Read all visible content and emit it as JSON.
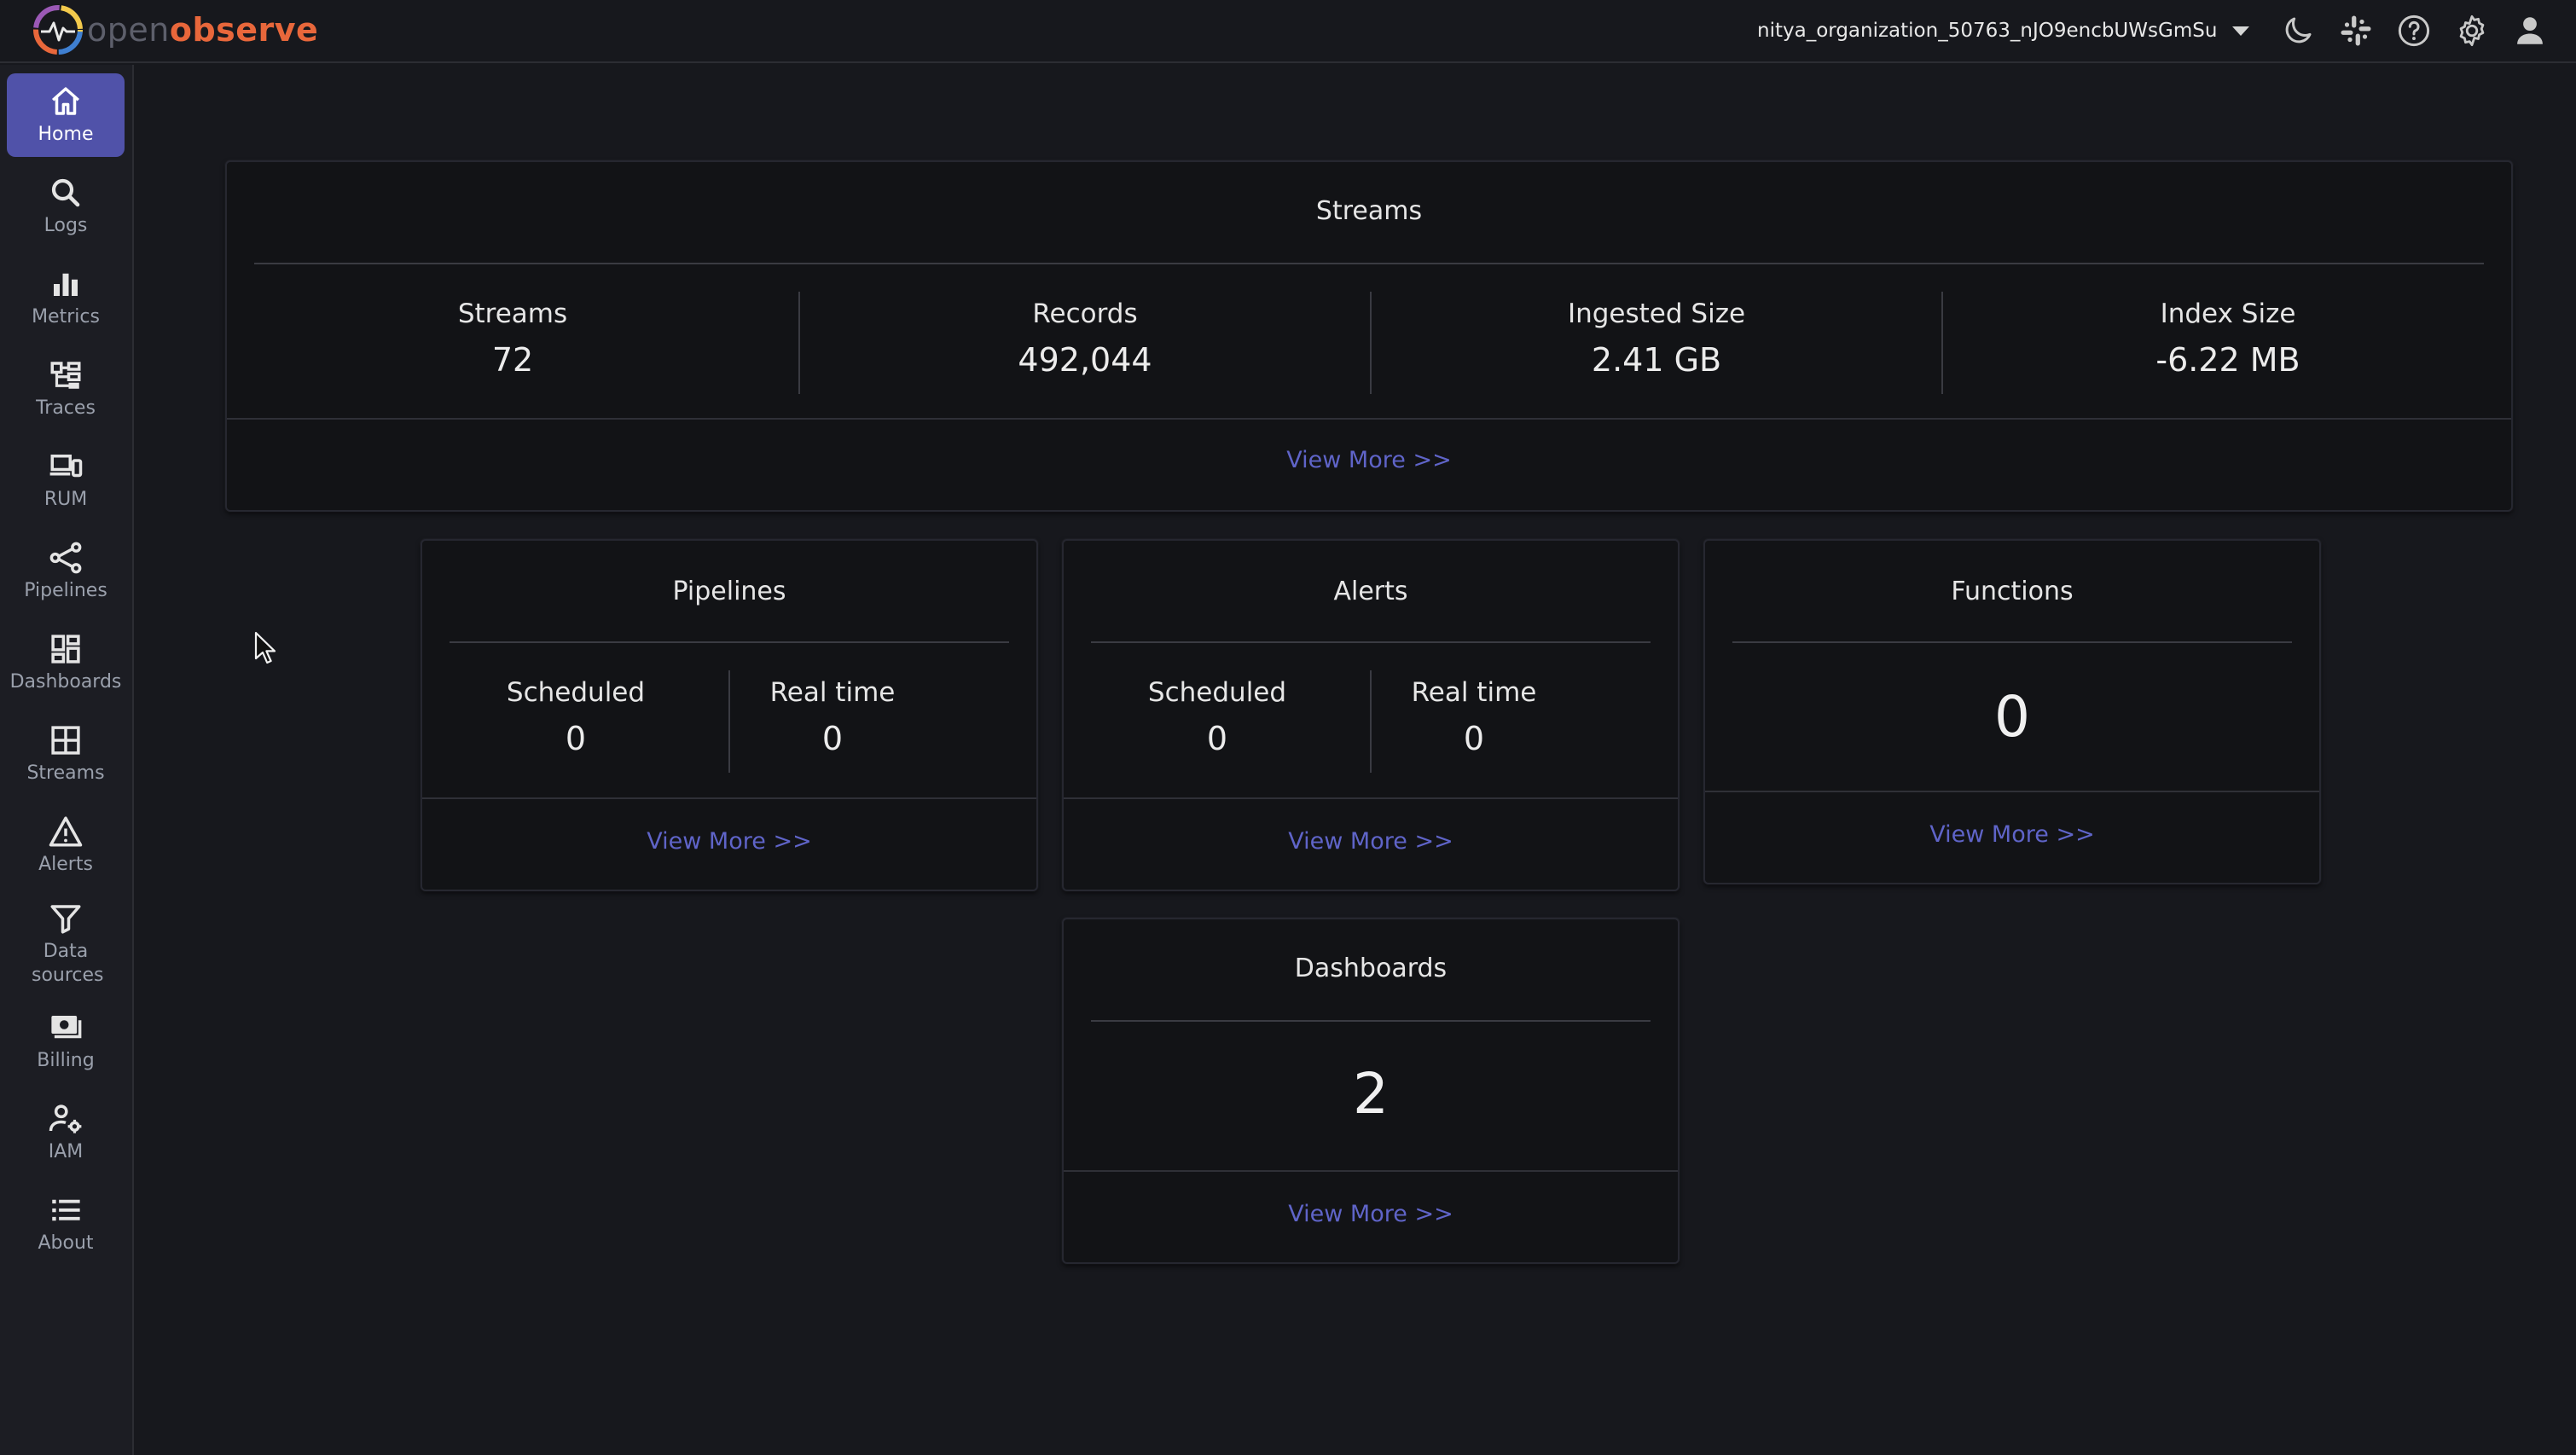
{
  "header": {
    "brand_open": "open",
    "brand_observe": "observe",
    "org_name": "nitya_organization_50763_nJO9encbUWsGmSu",
    "icons": [
      "moon-icon",
      "slack-icon",
      "help-icon",
      "settings-icon",
      "user-icon"
    ]
  },
  "sidebar": {
    "items": [
      {
        "label": "Home",
        "icon": "home-icon",
        "active": true
      },
      {
        "label": "Logs",
        "icon": "search-icon"
      },
      {
        "label": "Metrics",
        "icon": "bar-chart-icon"
      },
      {
        "label": "Traces",
        "icon": "traces-icon"
      },
      {
        "label": "RUM",
        "icon": "devices-icon"
      },
      {
        "label": "Pipelines",
        "icon": "pipelines-icon"
      },
      {
        "label": "Dashboards",
        "icon": "dashboards-icon"
      },
      {
        "label": "Streams",
        "icon": "streams-icon"
      },
      {
        "label": "Alerts",
        "icon": "alert-icon"
      },
      {
        "label": "Data sources",
        "icon": "filter-icon"
      },
      {
        "label": "Billing",
        "icon": "billing-icon"
      },
      {
        "label": "IAM",
        "icon": "iam-icon"
      },
      {
        "label": "About",
        "icon": "list-icon"
      }
    ]
  },
  "streams_card": {
    "title": "Streams",
    "stats": [
      {
        "label": "Streams",
        "value": "72"
      },
      {
        "label": "Records",
        "value": "492,044"
      },
      {
        "label": "Ingested Size",
        "value": "2.41 GB"
      },
      {
        "label": "Index Size",
        "value": "-6.22 MB"
      }
    ],
    "view_more": "View More >>"
  },
  "pipelines_card": {
    "title": "Pipelines",
    "scheduled_label": "Scheduled",
    "scheduled_value": "0",
    "realtime_label": "Real time",
    "realtime_value": "0",
    "view_more": "View More >>"
  },
  "alerts_card": {
    "title": "Alerts",
    "scheduled_label": "Scheduled",
    "scheduled_value": "0",
    "realtime_label": "Real time",
    "realtime_value": "0",
    "view_more": "View More >>"
  },
  "functions_card": {
    "title": "Functions",
    "value": "0",
    "view_more": "View More >>"
  },
  "dashboards_card": {
    "title": "Dashboards",
    "value": "2",
    "view_more": "View More >>"
  },
  "colors": {
    "accent": "#5052a9",
    "link": "#5f64c8",
    "brand_orange": "#e8673b",
    "background": "#17181d",
    "card": "#121316"
  }
}
